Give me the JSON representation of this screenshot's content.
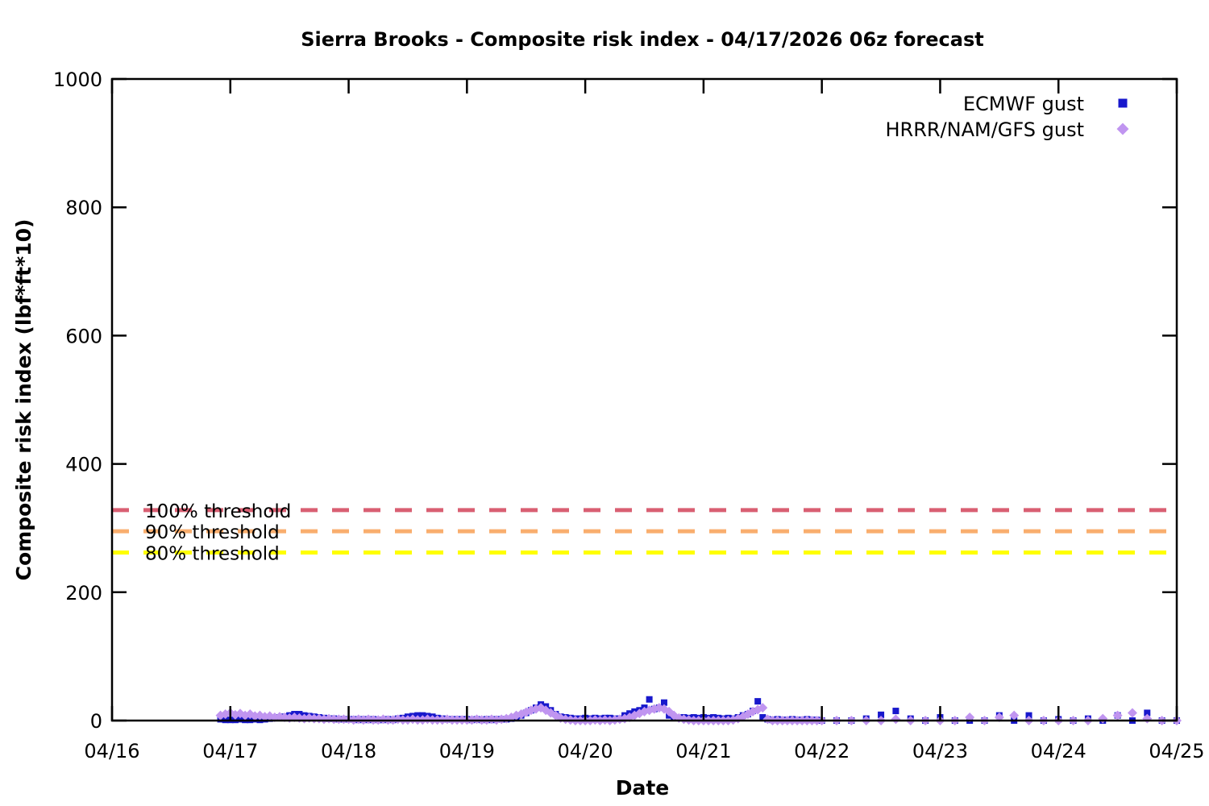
{
  "title": "Sierra Brooks - Composite risk index - 04/17/2026 06z forecast",
  "chart_data": {
    "type": "scatter",
    "title": "Sierra Brooks - Composite risk index - 04/17/2026 06z forecast",
    "xlabel": "Date",
    "ylabel": "Composite risk index (lbf*ft*10)",
    "x_ticks": [
      "04/16",
      "04/17",
      "04/18",
      "04/19",
      "04/20",
      "04/21",
      "04/22",
      "04/23",
      "04/24",
      "04/25"
    ],
    "x_tick_days": [
      0,
      1,
      2,
      3,
      4,
      5,
      6,
      7,
      8,
      9
    ],
    "y_ticks": [
      "0",
      "200",
      "400",
      "600",
      "800",
      "1000"
    ],
    "y_tick_values": [
      0,
      200,
      400,
      600,
      800,
      1000
    ],
    "ylim": [
      0,
      1000
    ],
    "xlim_days": [
      0,
      9
    ],
    "grid": false,
    "legend_position": "top-right-inside",
    "axis_color": "#000000",
    "background_color": "#ffffff",
    "thresholds": [
      {
        "label": "100% threshold",
        "value": 328,
        "color": "#d95f72"
      },
      {
        "label": "90% threshold",
        "value": 295,
        "color": "#f9ae6e"
      },
      {
        "label": "80% threshold",
        "value": 262,
        "color": "#ffff00"
      }
    ],
    "series": [
      {
        "name": "ECMWF gust",
        "marker": "square",
        "color": "#1818cc",
        "segments": [
          {
            "start_day": 0.916667,
            "step_days": 0.041667,
            "values": [
              2,
              1,
              1,
              1,
              2,
              1,
              1,
              2,
              1,
              2,
              3,
              4,
              5,
              6,
              8,
              10,
              10,
              8,
              7,
              6,
              5,
              4,
              3,
              3,
              2,
              2,
              2,
              2,
              1,
              2,
              1,
              2,
              1,
              1,
              2,
              1,
              3,
              4,
              6,
              7,
              8,
              8,
              7,
              6,
              4,
              3,
              2,
              2,
              2,
              2,
              2,
              1,
              2,
              1,
              2,
              1,
              2,
              2,
              2,
              3,
              5,
              8,
              12,
              16,
              20,
              25,
              22,
              16,
              10,
              6,
              5,
              4,
              3,
              3,
              4,
              3,
              4,
              3,
              4,
              4,
              3,
              3,
              8,
              11,
              14,
              16,
              20,
              33,
              18,
              20,
              28,
              8,
              5,
              4,
              5,
              4,
              5,
              4,
              5,
              4,
              5,
              4,
              3,
              4,
              3,
              5,
              8,
              10,
              15,
              30,
              5,
              2,
              1,
              2,
              1,
              1,
              2,
              1,
              1,
              2,
              1,
              1,
              0
            ]
          },
          {
            "start_day": 6.125,
            "step_days": 0.125,
            "values": [
              0,
              0,
              3,
              9,
              15,
              3,
              0,
              5,
              0,
              0,
              0,
              8,
              0,
              8,
              0,
              2,
              0,
              3,
              0,
              8,
              0,
              12,
              0,
              0
            ]
          }
        ]
      },
      {
        "name": "HRRR/NAM/GFS gust",
        "marker": "diamond",
        "color": "#c095f0",
        "segments": [
          {
            "start_day": 0.916667,
            "step_days": 0.041667,
            "values": [
              8,
              10,
              12,
              9,
              11,
              8,
              10,
              7,
              8,
              6,
              7,
              5,
              6,
              5,
              4,
              5,
              4,
              3,
              4,
              3,
              3,
              2,
              3,
              2,
              2,
              2,
              2,
              1,
              2,
              1,
              2,
              1,
              1,
              2,
              1,
              1,
              2,
              1,
              1,
              2,
              1,
              1,
              2,
              1,
              1,
              1,
              2,
              1,
              1,
              1,
              1,
              1,
              2,
              1,
              1,
              2,
              1,
              2,
              3,
              5,
              8,
              10,
              13,
              16,
              18,
              20,
              16,
              12,
              8,
              4,
              2,
              1,
              0,
              0,
              0,
              0,
              1,
              0,
              1,
              0,
              1,
              2,
              3,
              5,
              8,
              11,
              14,
              16,
              18,
              20,
              18,
              14,
              8,
              4,
              2,
              1,
              0,
              0,
              0,
              0,
              0,
              0,
              0,
              0,
              1,
              3,
              6,
              10,
              14,
              17,
              20,
              2,
              0,
              0,
              0,
              0,
              0,
              0,
              0,
              0,
              0,
              0,
              0
            ]
          },
          {
            "start_day": 6.125,
            "step_days": 0.125,
            "values": [
              0,
              0,
              0,
              0,
              2,
              0,
              0,
              0,
              0,
              5,
              0,
              5,
              8,
              0,
              0,
              0,
              0,
              0,
              3,
              8,
              12,
              3,
              0,
              0
            ]
          }
        ]
      }
    ]
  }
}
